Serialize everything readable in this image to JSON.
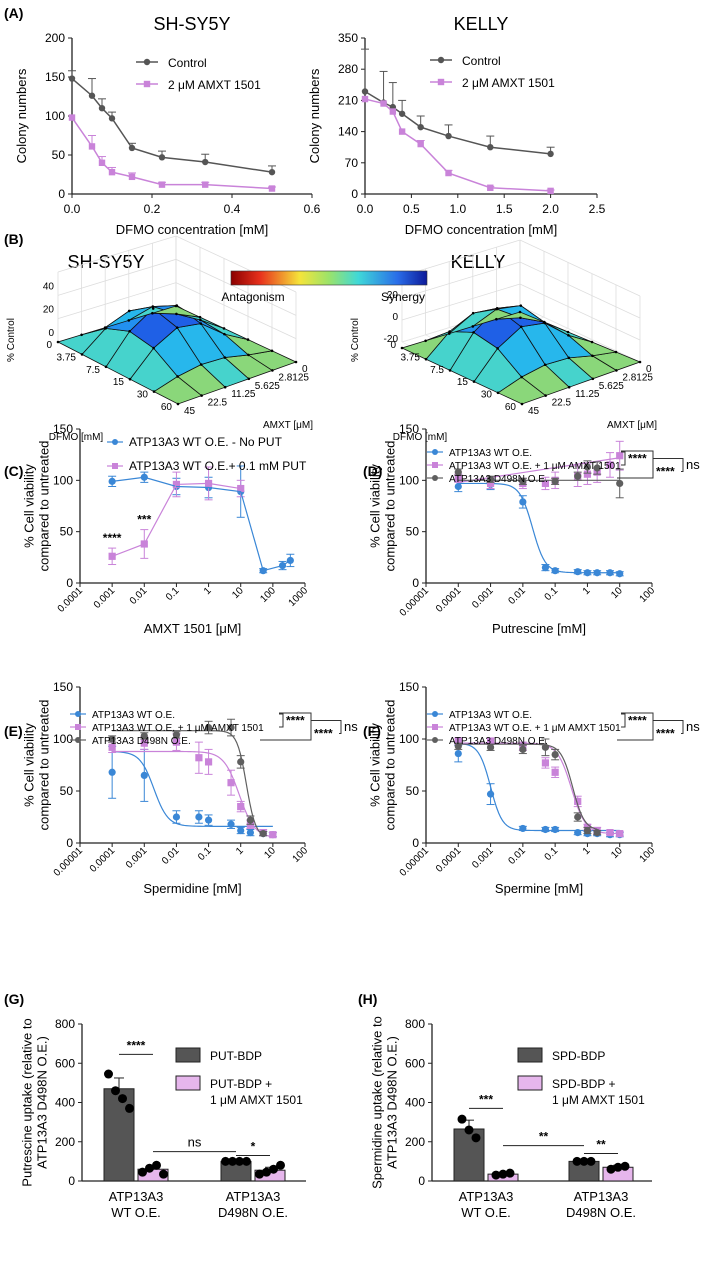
{
  "chart_data": [
    {
      "panel": "(A)",
      "type": "line",
      "title": "SH-SY5Y",
      "xlabel": "DFMO concentration [mM]",
      "ylabel": "Colony numbers",
      "xlim": [
        0,
        0.6
      ],
      "ylim": [
        0,
        200
      ],
      "xticks": [
        "0.0",
        "0.2",
        "0.4",
        "0.6"
      ],
      "yticks": [
        "0",
        "50",
        "100",
        "150",
        "200"
      ],
      "series": [
        {
          "name": "Control",
          "color": "#555555",
          "marker": "circle",
          "x": [
            0,
            0.05,
            0.075,
            0.1,
            0.15,
            0.225,
            0.333,
            0.5
          ],
          "y": [
            148,
            126,
            110,
            97,
            59,
            47,
            41,
            28
          ],
          "err": [
            10,
            22,
            12,
            8,
            6,
            8,
            10,
            8
          ]
        },
        {
          "name": "2 μM AMXT 1501",
          "color": "#c983d9",
          "marker": "square",
          "x": [
            0,
            0.05,
            0.075,
            0.1,
            0.15,
            0.225,
            0.333,
            0.5
          ],
          "y": [
            98,
            61,
            40,
            28,
            22,
            12,
            12,
            7
          ],
          "err": [
            0,
            14,
            8,
            6,
            5,
            3,
            3,
            2
          ]
        }
      ]
    },
    {
      "panel": "",
      "type": "line",
      "title": "KELLY",
      "xlabel": "DFMO concentration [mM]",
      "ylabel": "Colony numbers",
      "xlim": [
        0,
        2.5
      ],
      "ylim": [
        0,
        350
      ],
      "xticks": [
        "0.0",
        "0.5",
        "1.0",
        "1.5",
        "2.0",
        "2.5"
      ],
      "yticks": [
        "0",
        "70",
        "140",
        "210",
        "280",
        "350"
      ],
      "series": [
        {
          "name": "Control",
          "color": "#555555",
          "marker": "circle",
          "x": [
            0,
            0.2,
            0.3,
            0.4,
            0.6,
            0.9,
            1.35,
            2.0
          ],
          "y": [
            230,
            205,
            195,
            180,
            150,
            130,
            105,
            90
          ],
          "err": [
            95,
            70,
            55,
            30,
            25,
            25,
            25,
            15
          ]
        },
        {
          "name": "2 μM AMXT 1501",
          "color": "#c983d9",
          "marker": "square",
          "x": [
            0,
            0.2,
            0.3,
            0.4,
            0.6,
            0.9,
            1.35,
            2.0
          ],
          "y": [
            213,
            203,
            185,
            140,
            112,
            47,
            14,
            7
          ],
          "err": [
            0,
            0,
            0,
            0,
            8,
            6,
            3,
            2
          ]
        }
      ]
    },
    {
      "panel": "(B)",
      "type": "heatmap",
      "title": "SH-SY5Y",
      "zlabel": "% Control",
      "zticks": [
        "0",
        "20",
        "40"
      ],
      "xlabel": "DFMO [mM]",
      "xticks": [
        "0",
        "3.75",
        "7.5",
        "15",
        "30",
        "60"
      ],
      "ylabel": "AMXT [μM]",
      "yticks": [
        "0",
        "2.8125",
        "5.625",
        "11.25",
        "22.5",
        "45"
      ],
      "colorbar": {
        "low": "Antagonism",
        "high": "Synergy"
      }
    },
    {
      "panel": "",
      "type": "heatmap",
      "title": "KELLY",
      "zlabel": "% Control",
      "zticks": [
        "-20",
        "0",
        "20"
      ],
      "xlabel": "DFMO [mM]",
      "xticks": [
        "0",
        "3.75",
        "7.5",
        "15",
        "30",
        "60"
      ],
      "ylabel": "AMXT [μM]",
      "yticks": [
        "0",
        "2.8125",
        "5.625",
        "11.25",
        "22.5",
        "45"
      ]
    },
    {
      "panel": "(C)",
      "type": "scatter",
      "xscale": "log",
      "xlabel": "AMXT 1501 [μM]",
      "ylabel": "% Cell viability compared to untreated",
      "xlim": [
        0.0001,
        1000
      ],
      "ylim": [
        0,
        150
      ],
      "xticks": [
        "0.0001",
        "0.001",
        "0.01",
        "0.1",
        "1",
        "10",
        "100",
        "1000"
      ],
      "yticks": [
        "0",
        "50",
        "100",
        "150"
      ],
      "annotations": [
        {
          "x": 0.001,
          "text": "****"
        },
        {
          "x": 0.01,
          "text": "***"
        }
      ],
      "series": [
        {
          "name": "ATP13A3 WT O.E. - No PUT",
          "color": "#3a87d6",
          "marker": "circle",
          "x": [
            0.001,
            0.01,
            0.1,
            1,
            10,
            50,
            200,
            350
          ],
          "y": [
            99,
            103,
            94,
            93,
            89,
            12,
            17,
            22
          ],
          "err": [
            5,
            5,
            8,
            10,
            25,
            2,
            4,
            6
          ]
        },
        {
          "name": "ATP13A3 WT O.E.+ 0.1 mM PUT",
          "color": "#c983d9",
          "marker": "square",
          "x": [
            0.001,
            0.01,
            0.1,
            1,
            10
          ],
          "y": [
            26,
            38,
            96,
            97,
            92
          ],
          "err": [
            8,
            14,
            12,
            16,
            8
          ]
        }
      ]
    },
    {
      "panel": "(D)",
      "type": "scatter",
      "xscale": "log",
      "xlabel": "Putrescine [mM]",
      "ylabel": "% Cell viability compared to untreated",
      "xlim": [
        1e-05,
        100
      ],
      "ylim": [
        0,
        150
      ],
      "xticks": [
        "0.00001",
        "0.0001",
        "0.001",
        "0.01",
        "0.1",
        "1",
        "10",
        "100"
      ],
      "yticks": [
        "0",
        "50",
        "100",
        "150"
      ],
      "brackets": [
        "****",
        "****",
        "ns"
      ],
      "series": [
        {
          "name": "ATP13A3 WT O.E.",
          "color": "#3a87d6",
          "marker": "circle",
          "x": [
            0.0001,
            0.001,
            0.01,
            0.05,
            0.1,
            0.5,
            1,
            2,
            5,
            10
          ],
          "y": [
            94,
            96,
            79,
            15,
            12,
            11,
            10,
            10,
            10,
            9
          ],
          "err": [
            5,
            5,
            6,
            3,
            2,
            2,
            2,
            2,
            2,
            2
          ],
          "fit": {
            "top": 97,
            "bottom": 10,
            "ic50": 0.02,
            "hill": -2.2
          }
        },
        {
          "name": "ATP13A3 WT O.E. + 1 μM AMXT 1501",
          "color": "#c983d9",
          "marker": "square",
          "x": [
            0.0001,
            0.001,
            0.01,
            0.05,
            0.1,
            0.5,
            1,
            2,
            5,
            10
          ],
          "y": [
            102,
            97,
            97,
            97,
            100,
            104,
            106,
            108,
            115,
            124
          ],
          "err": [
            4,
            5,
            5,
            6,
            8,
            10,
            10,
            10,
            12,
            14
          ],
          "fit": {
            "type": "linear",
            "from": 98,
            "to": 122
          }
        },
        {
          "name": "ATP13A3 D498N O.E.",
          "color": "#5f5f5f",
          "marker": "circle",
          "x": [
            0.0001,
            0.001,
            0.01,
            0.1,
            0.5,
            1,
            2,
            10
          ],
          "y": [
            108,
            101,
            99,
            99,
            104,
            113,
            112,
            97
          ],
          "err": [
            3,
            3,
            3,
            3,
            4,
            6,
            6,
            14
          ],
          "fit": {
            "type": "flat",
            "value": 100
          }
        }
      ]
    },
    {
      "panel": "(E)",
      "type": "scatter",
      "xscale": "log",
      "xlabel": "Spermidine [mM]",
      "ylabel": "% Cell viability compared to untreated",
      "xlim": [
        1e-05,
        100
      ],
      "ylim": [
        0,
        150
      ],
      "xticks": [
        "0.00001",
        "0.0001",
        "0.001",
        "0.01",
        "0.1",
        "1",
        "10",
        "100"
      ],
      "yticks": [
        "0",
        "50",
        "100",
        "150"
      ],
      "brackets": [
        "****",
        "****",
        "ns"
      ],
      "series": [
        {
          "name": "ATP13A3 WT O.E.",
          "color": "#3a87d6",
          "marker": "circle",
          "x": [
            0.0001,
            0.001,
            0.01,
            0.05,
            0.1,
            0.5,
            1,
            2,
            5,
            10
          ],
          "y": [
            68,
            65,
            25,
            25,
            22,
            18,
            12,
            10,
            9,
            8
          ],
          "err": [
            25,
            25,
            6,
            6,
            5,
            4,
            3,
            3,
            2,
            2
          ],
          "fit": {
            "top": 88,
            "bottom": 16,
            "ic50": 0.002,
            "hill": -2.0
          }
        },
        {
          "name": "ATP13A3 WT O.E. + 1 μM AMXT 1501",
          "color": "#c983d9",
          "marker": "square",
          "x": [
            0.0001,
            0.001,
            0.01,
            0.05,
            0.1,
            0.5,
            1,
            2,
            5,
            10
          ],
          "y": [
            92,
            96,
            97,
            82,
            78,
            58,
            35,
            18,
            10,
            8
          ],
          "err": [
            5,
            6,
            8,
            15,
            12,
            12,
            5,
            4,
            3,
            2
          ],
          "fit": {
            "top": 88,
            "bottom": 5,
            "ic50": 0.9,
            "hill": -1.8
          }
        },
        {
          "name": "ATP13A3 D498N O.E.",
          "color": "#5f5f5f",
          "marker": "circle",
          "x": [
            0.0001,
            0.001,
            0.01,
            0.1,
            0.5,
            1,
            2,
            5
          ],
          "y": [
            100,
            103,
            104,
            111,
            111,
            78,
            22,
            9
          ],
          "err": [
            3,
            3,
            3,
            6,
            8,
            6,
            4,
            2
          ],
          "fit": {
            "top": 108,
            "bottom": 5,
            "ic50": 1.5,
            "hill": -3.0
          }
        }
      ]
    },
    {
      "panel": "(F)",
      "type": "scatter",
      "xscale": "log",
      "xlabel": "Spermine [mM]",
      "ylabel": "% Cell viability compared to untreated",
      "xlim": [
        1e-05,
        100
      ],
      "ylim": [
        0,
        150
      ],
      "xticks": [
        "0.00001",
        "0.0001",
        "0.001",
        "0.01",
        "0.1",
        "1",
        "10",
        "100"
      ],
      "yticks": [
        "0",
        "50",
        "100",
        "150"
      ],
      "brackets": [
        "****",
        "****",
        "ns"
      ],
      "series": [
        {
          "name": "ATP13A3 WT O.E.",
          "color": "#3a87d6",
          "marker": "circle",
          "x": [
            0.0001,
            0.001,
            0.01,
            0.05,
            0.1,
            0.5,
            1,
            2,
            5,
            10
          ],
          "y": [
            86,
            47,
            14,
            13,
            13,
            10,
            9,
            9,
            8,
            8
          ],
          "err": [
            8,
            10,
            2,
            2,
            2,
            2,
            2,
            2,
            2,
            2
          ],
          "fit": {
            "top": 96,
            "bottom": 12,
            "ic50": 0.001,
            "hill": -2.4
          }
        },
        {
          "name": "ATP13A3 WT O.E. + 1 μM AMXT 1501",
          "color": "#c983d9",
          "marker": "square",
          "x": [
            0.0001,
            0.001,
            0.01,
            0.05,
            0.1,
            0.5,
            1,
            2,
            5,
            10
          ],
          "y": [
            98,
            98,
            93,
            77,
            68,
            40,
            15,
            12,
            10,
            9
          ],
          "err": [
            3,
            3,
            4,
            5,
            5,
            5,
            3,
            3,
            2,
            2
          ],
          "fit": {
            "top": 96,
            "bottom": 9,
            "ic50": 0.32,
            "hill": -2.0
          }
        },
        {
          "name": "ATP13A3 D498N O.E.",
          "color": "#5f5f5f",
          "marker": "circle",
          "x": [
            0.0001,
            0.001,
            0.01,
            0.05,
            0.1,
            0.5,
            1,
            2
          ],
          "y": [
            93,
            92,
            90,
            92,
            85,
            25,
            12,
            10
          ],
          "err": [
            3,
            3,
            4,
            8,
            5,
            4,
            3,
            2
          ],
          "fit": {
            "top": 95,
            "bottom": 12,
            "ic50": 0.35,
            "hill": -2.4
          }
        }
      ]
    },
    {
      "panel": "(G)",
      "type": "bar",
      "ylabel": "Putrescine uptake (relative to ATP13A3 D498N O.E.)",
      "ylim": [
        0,
        800
      ],
      "yticks": [
        "0",
        "200",
        "400",
        "600",
        "800"
      ],
      "groups": [
        {
          "label_lines": [
            "ATP13A3",
            "WT O.E."
          ]
        },
        {
          "label_lines": [
            "ATP13A3",
            "D498N O.E."
          ]
        }
      ],
      "series": [
        {
          "name": "PUT-BDP",
          "color": "#555555",
          "values": [
            470,
            100
          ],
          "err": [
            55,
            0
          ],
          "points": [
            [
              545,
              460,
              420,
              370
            ],
            [
              100,
              100,
              100,
              100
            ]
          ]
        },
        {
          "name": "PUT-BDP + 1 μM AMXT 1501",
          "color": "#e6b6ec",
          "values": [
            60,
            55
          ],
          "err": [
            15,
            15
          ],
          "points": [
            [
              45,
              65,
              80,
              35
            ],
            [
              35,
              45,
              60,
              80
            ]
          ]
        }
      ],
      "legend_lines": [
        [
          "PUT-BDP"
        ],
        [
          "PUT-BDP +",
          "1 μM AMXT 1501"
        ]
      ],
      "significance": [
        {
          "text": "****",
          "from": [
            0,
            0
          ],
          "to": [
            0,
            1
          ],
          "y": 645
        },
        {
          "text": "ns",
          "from": [
            0,
            1
          ],
          "to": [
            1,
            0
          ],
          "y": 150
        },
        {
          "text": "*",
          "from": [
            1,
            0
          ],
          "to": [
            1,
            1
          ],
          "y": 130
        }
      ]
    },
    {
      "panel": "(H)",
      "type": "bar",
      "ylabel": "Spermidine uptake (relative to ATP13A3 D498N O.E.)",
      "ylim": [
        0,
        800
      ],
      "yticks": [
        "0",
        "200",
        "400",
        "600",
        "800"
      ],
      "groups": [
        {
          "label_lines": [
            "ATP13A3",
            "WT O.E."
          ]
        },
        {
          "label_lines": [
            "ATP13A3",
            "D498N O.E."
          ]
        }
      ],
      "series": [
        {
          "name": "SPD-BDP",
          "color": "#555555",
          "values": [
            265,
            100
          ],
          "err": [
            45,
            0
          ],
          "points": [
            [
              315,
              260,
              220
            ],
            [
              100,
              100,
              100
            ]
          ]
        },
        {
          "name": "SPD-BDP + 1 μM AMXT 1501",
          "color": "#e6b6ec",
          "values": [
            35,
            70
          ],
          "err": [
            8,
            10
          ],
          "points": [
            [
              30,
              35,
              40
            ],
            [
              60,
              70,
              75
            ]
          ]
        }
      ],
      "legend_lines": [
        [
          "SPD-BDP"
        ],
        [
          "SPD-BDP +",
          "1 μM AMXT 1501"
        ]
      ],
      "significance": [
        {
          "text": "***",
          "from": [
            0,
            0
          ],
          "to": [
            0,
            1
          ],
          "y": 370
        },
        {
          "text": "**",
          "from": [
            0,
            1
          ],
          "to": [
            1,
            0
          ],
          "y": 180
        },
        {
          "text": "**",
          "from": [
            1,
            0
          ],
          "to": [
            1,
            1
          ],
          "y": 140
        }
      ]
    }
  ]
}
